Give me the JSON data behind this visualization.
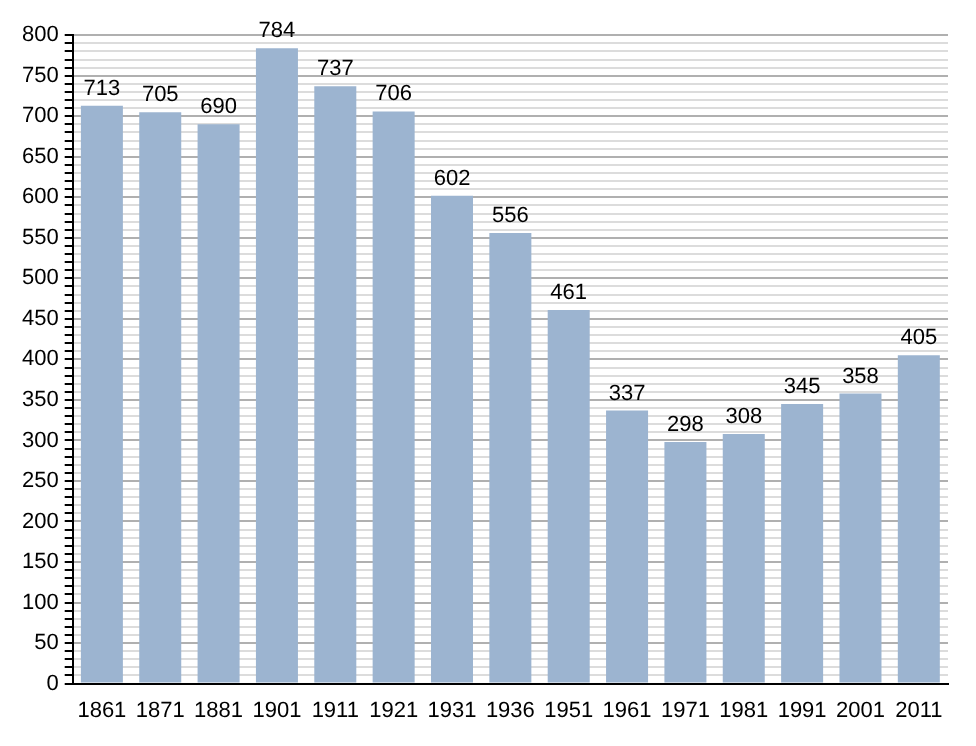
{
  "chart_data": {
    "type": "bar",
    "categories": [
      "1861",
      "1871",
      "1881",
      "1901",
      "1911",
      "1921",
      "1931",
      "1936",
      "1951",
      "1961",
      "1971",
      "1981",
      "1991",
      "2001",
      "2011"
    ],
    "values": [
      713,
      705,
      690,
      784,
      737,
      706,
      602,
      556,
      461,
      337,
      298,
      308,
      345,
      358,
      405
    ],
    "color": "#9cb4d0",
    "ylim": [
      0,
      800
    ],
    "yticks": [
      0,
      {
        "value": 10,
        "label": null
      },
      {
        "value": 20,
        "label": null
      },
      {
        "value": 30,
        "label": null
      },
      {
        "value": 40,
        "label": null
      },
      50,
      {
        "value": 60,
        "label": null
      },
      {
        "value": 70,
        "label": null
      },
      {
        "value": 80,
        "label": null
      },
      {
        "value": 90,
        "label": null
      },
      100,
      {
        "value": 110,
        "label": null
      },
      {
        "value": 120,
        "label": null
      },
      {
        "value": 130,
        "label": null
      },
      {
        "value": 140,
        "label": null
      },
      150,
      {
        "value": 160,
        "label": null
      },
      {
        "value": 170,
        "label": null
      },
      {
        "value": 180,
        "label": null
      },
      {
        "value": 190,
        "label": null
      },
      200,
      {
        "value": 210,
        "label": null
      },
      {
        "value": 220,
        "label": null
      },
      {
        "value": 230,
        "label": null
      },
      {
        "value": 240,
        "label": null
      },
      250,
      {
        "value": 260,
        "label": null
      },
      {
        "value": 270,
        "label": null
      },
      {
        "value": 280,
        "label": null
      },
      {
        "value": 290,
        "label": null
      },
      300,
      {
        "value": 310,
        "label": null
      },
      {
        "value": 320,
        "label": null
      },
      {
        "value": 330,
        "label": null
      },
      {
        "value": 340,
        "label": null
      },
      350,
      {
        "value": 360,
        "label": null
      },
      {
        "value": 370,
        "label": null
      },
      {
        "value": 380,
        "label": null
      },
      {
        "value": 390,
        "label": null
      },
      400,
      {
        "value": 410,
        "label": null
      },
      {
        "value": 420,
        "label": null
      },
      {
        "value": 430,
        "label": null
      },
      {
        "value": 440,
        "label": null
      },
      450,
      {
        "value": 460,
        "label": null
      },
      {
        "value": 470,
        "label": null
      },
      {
        "value": 480,
        "label": null
      },
      {
        "value": 490,
        "label": null
      },
      500,
      {
        "value": 510,
        "label": null
      },
      {
        "value": 520,
        "label": null
      },
      {
        "value": 530,
        "label": null
      },
      {
        "value": 540,
        "label": null
      },
      550,
      {
        "value": 560,
        "label": null
      },
      {
        "value": 570,
        "label": null
      },
      {
        "value": 580,
        "label": null
      },
      {
        "value": 590,
        "label": null
      },
      600,
      {
        "value": 610,
        "label": null
      },
      {
        "value": 620,
        "label": null
      },
      {
        "value": 630,
        "label": null
      },
      {
        "value": 640,
        "label": null
      },
      650,
      {
        "value": 660,
        "label": null
      },
      {
        "value": 670,
        "label": null
      },
      {
        "value": 680,
        "label": null
      },
      {
        "value": 690,
        "label": null
      },
      700,
      {
        "value": 710,
        "label": null
      },
      {
        "value": 720,
        "label": null
      },
      {
        "value": 730,
        "label": null
      },
      {
        "value": 740,
        "label": null
      },
      750,
      {
        "value": 760,
        "label": null
      },
      {
        "value": 770,
        "label": null
      },
      {
        "value": 780,
        "label": null
      },
      {
        "value": 790,
        "label": null
      },
      800
    ],
    "grid": "y",
    "data_labels": true
  }
}
